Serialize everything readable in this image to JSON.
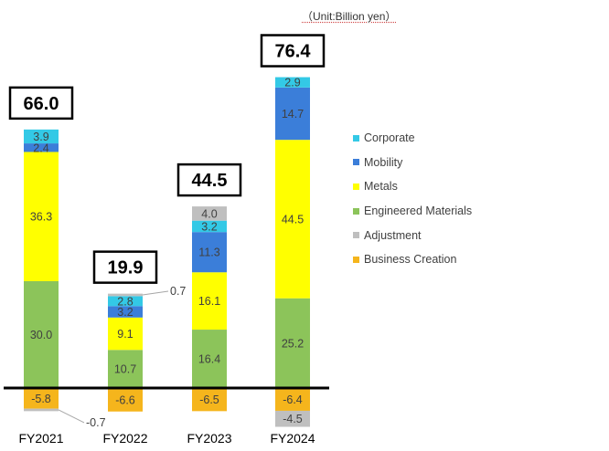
{
  "chart_data": {
    "type": "bar",
    "stacked": true,
    "unit": "（Unit:Billion yen）",
    "categories": [
      "FY2021",
      "FY2022",
      "FY2023",
      "FY2024"
    ],
    "totals": [
      "66.0",
      "19.9",
      "44.5",
      "76.4"
    ],
    "series": [
      {
        "name": "Corporate",
        "color": "#33c9e6",
        "values": [
          3.9,
          2.8,
          3.2,
          2.9
        ]
      },
      {
        "name": "Mobility",
        "color": "#3b7ed9",
        "values": [
          2.4,
          3.2,
          11.3,
          14.7
        ]
      },
      {
        "name": "Metals",
        "color": "#ffff00",
        "values": [
          36.3,
          9.1,
          16.1,
          44.5
        ]
      },
      {
        "name": "Engineered Materials",
        "color": "#8cc45a",
        "values": [
          30.0,
          10.7,
          16.4,
          25.2
        ]
      },
      {
        "name": "Adjustment",
        "color": "#bfbfbf",
        "values": [
          -0.7,
          0.7,
          4.0,
          -4.5
        ]
      },
      {
        "name": "Business Creation",
        "color": "#f5b51c",
        "values": [
          -5.8,
          -6.6,
          -6.5,
          -6.4
        ]
      }
    ],
    "legend_order": [
      "Corporate",
      "Mobility",
      "Metals",
      "Engineered Materials",
      "Adjustment",
      "Business Creation"
    ],
    "legend_position": "right"
  }
}
